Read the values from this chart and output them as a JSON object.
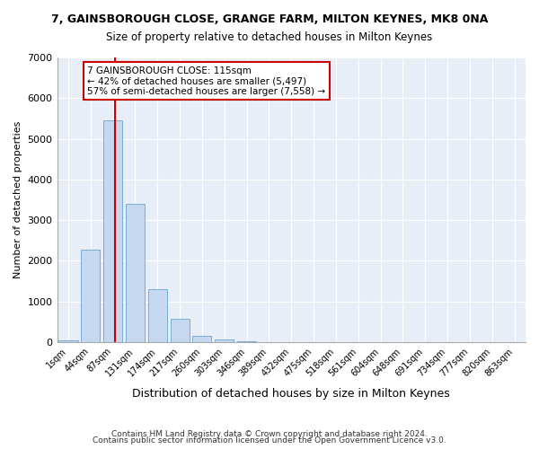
{
  "title": "7, GAINSBOROUGH CLOSE, GRANGE FARM, MILTON KEYNES, MK8 0NA",
  "subtitle": "Size of property relative to detached houses in Milton Keynes",
  "xlabel": "Distribution of detached houses by size in Milton Keynes",
  "ylabel": "Number of detached properties",
  "bar_color": "#c5d8f0",
  "bar_edge_color": "#7aadd4",
  "bg_color": "#e8eef8",
  "grid_color": "#ffffff",
  "annotation_box_color": "#cc0000",
  "vline_color": "#cc0000",
  "bins": [
    "1sqm",
    "44sqm",
    "87sqm",
    "131sqm",
    "174sqm",
    "217sqm",
    "260sqm",
    "303sqm",
    "346sqm",
    "389sqm",
    "432sqm",
    "475sqm",
    "518sqm",
    "561sqm",
    "604sqm",
    "648sqm",
    "691sqm",
    "734sqm",
    "777sqm",
    "820sqm",
    "863sqm"
  ],
  "values": [
    55,
    2280,
    5450,
    3400,
    1300,
    580,
    150,
    70,
    30,
    5,
    2,
    1,
    0,
    0,
    0,
    0,
    0,
    0,
    0,
    0,
    0
  ],
  "annotation_lines": [
    "7 GAINSBOROUGH CLOSE: 115sqm",
    "← 42% of detached houses are smaller (5,497)",
    "57% of semi-detached houses are larger (7,558) →"
  ],
  "footnote1": "Contains HM Land Registry data © Crown copyright and database right 2024.",
  "footnote2": "Contains public sector information licensed under the Open Government Licence v3.0.",
  "ylim": [
    0,
    7000
  ],
  "yticks": [
    0,
    1000,
    2000,
    3000,
    4000,
    5000,
    6000,
    7000
  ],
  "vline_x": 2.115
}
